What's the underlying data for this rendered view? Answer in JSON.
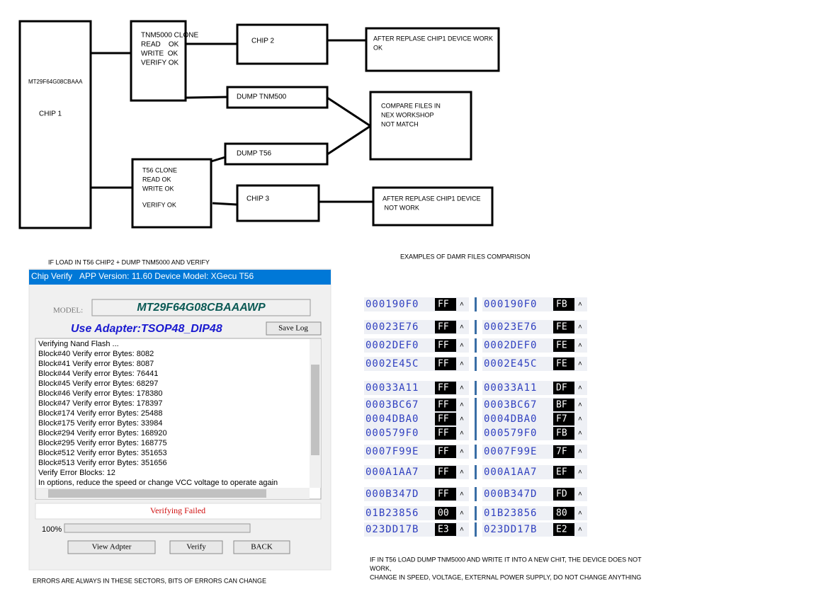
{
  "diagram": {
    "chip1": {
      "model": "MT29F64G08CBAAA",
      "label": "CHIP 1"
    },
    "tnm_clone": [
      "TNM5000 CLONE",
      "READ    OK",
      "WRITE  OK",
      "VERIFY OK"
    ],
    "chip2": "CHIP 2",
    "result_ok": [
      "AFTER REPLASE CHIP1 DEVICE WORK",
      "OK"
    ],
    "dump_tnm": "DUMP TNM500",
    "compare": [
      "COMPARE FILES IN",
      "NEX WORKSHOP",
      "NOT MATCH"
    ],
    "dump_t56": "DUMP T56",
    "t56_clone": [
      "T56 CLONE",
      "READ OK",
      "WRITE OK",
      "VERIFY OK"
    ],
    "chip3": "CHIP 3",
    "result_fail": [
      "AFTER REPLASE CHIP1 DEVICE",
      " NOT WORK"
    ]
  },
  "captions": {
    "verify_title": "IF LOAD IN T56 CHIP2 + DUMP TNM5000 AND VERIFY",
    "compare_title": "EXAMPLES OF DAMR FILES COMPARISON",
    "errors_note": "ERRORS ARE ALWAYS IN THESE SECTORS, BITS OF ERRORS CAN CHANGE",
    "write_note": [
      "IF IN T56 LOAD DUMP TNM5000 AND WRITE IT INTO A NEW CHIT, THE DEVICE DOES NOT",
      "WORK,",
      "CHANGE IN SPEED, VOLTAGE, EXTERNAL POWER SUPPLY, DO NOT CHANGE ANYTHING"
    ]
  },
  "window": {
    "title": "Chip Verify",
    "app_info": "APP Version: 11.60 Device Model: XGecu T56",
    "model_label": "MODEL:",
    "model": "MT29F64G08CBAAAWP",
    "adapter": "Use Adapter:TSOP48_DIP48",
    "save_log": "Save Log",
    "log": [
      "Verifying Nand Flash ...",
      "Block#40 Verify error Bytes: 8082",
      "Block#41 Verify error Bytes: 8087",
      "Block#44 Verify error Bytes: 76441",
      "Block#45 Verify error Bytes: 68297",
      "Block#46 Verify error Bytes: 178380",
      "Block#47 Verify error Bytes: 178397",
      "Block#174 Verify error Bytes: 25488",
      "Block#175 Verify error Bytes: 33984",
      "Block#294 Verify error Bytes: 168920",
      "Block#295 Verify error Bytes: 168775",
      "Block#512 Verify error Bytes: 351653",
      "Block#513 Verify error Bytes: 351656",
      "Verify Error Blocks: 12",
      "In options, reduce the speed or change VCC voltage to operate again"
    ],
    "status": "Verifying Failed",
    "progress": "100%",
    "buttons": [
      "View Adpter",
      "Verify",
      "BACK"
    ]
  },
  "hex_compare": {
    "rows": [
      {
        "address": "000190F0",
        "left": "FF",
        "right": "FB"
      },
      {
        "address": "00023E76",
        "left": "FF",
        "right": "FE"
      },
      {
        "address": "0002DEF0",
        "left": "FF",
        "right": "FE"
      },
      {
        "address": "0002E45C",
        "left": "FF",
        "right": "FE"
      },
      {
        "address": "00033A11",
        "left": "FF",
        "right": "DF"
      },
      {
        "address": "0003BC67",
        "left": "FF",
        "right": "BF"
      },
      {
        "address": "0004DBA0",
        "left": "FF",
        "right": "F7"
      },
      {
        "address": "000579F0",
        "left": "FF",
        "right": "FB"
      },
      {
        "address": "0007F99E",
        "left": "FF",
        "right": "7F"
      },
      {
        "address": "000A1AA7",
        "left": "FF",
        "right": "EF"
      },
      {
        "address": "000B347D",
        "left": "FF",
        "right": "FD"
      },
      {
        "address": "01B23856",
        "left": "00",
        "right": "80"
      },
      {
        "address": "023DD17B",
        "left": "E3",
        "right": "E2"
      }
    ]
  }
}
